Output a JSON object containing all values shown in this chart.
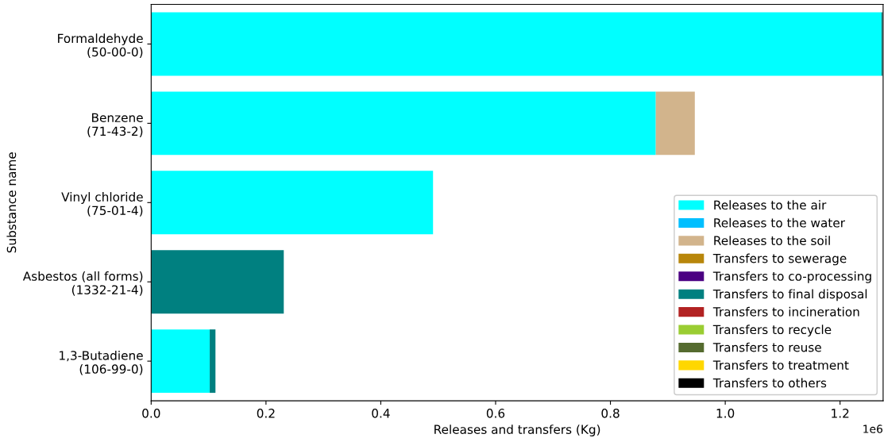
{
  "chart_data": {
    "type": "bar",
    "orientation": "horizontal",
    "stacked": true,
    "ylabel": "Substance name",
    "xlabel": "Releases and transfers (Kg)",
    "categories": [
      "Formaldehyde\n(50-00-0)",
      "Benzene\n(71-43-2)",
      "Vinyl chloride\n(75-01-4)",
      "Asbestos (all forms)\n(1332-21-4)",
      "1,3-Butadiene\n(106-99-0)"
    ],
    "series": [
      {
        "name": "Releases to the air",
        "color": "#00ffff",
        "values": [
          1.272,
          0.879,
          0.491,
          0,
          0.102
        ]
      },
      {
        "name": "Releases to the water",
        "color": "#00bfff",
        "values": [
          0,
          null,
          null,
          0,
          0
        ]
      },
      {
        "name": "Releases to the soil",
        "color": "#d2b48c",
        "values": [
          0,
          0.068,
          0,
          0,
          0
        ]
      },
      {
        "name": "Transfers to sewerage",
        "color": "#b8860b",
        "values": [
          0,
          0,
          0,
          0,
          0
        ]
      },
      {
        "name": "Transfers to co-processing",
        "color": "#4b0082",
        "values": [
          0,
          0,
          0,
          0,
          0
        ]
      },
      {
        "name": "Transfers to final disposal",
        "color": "#008080",
        "values": [
          0.002,
          null,
          0,
          0.231,
          0.01
        ]
      },
      {
        "name": "Transfers to incineration",
        "color": "#b22222",
        "values": [
          0,
          0,
          0,
          0,
          0
        ]
      },
      {
        "name": "Transfers to recycle",
        "color": "#9acd32",
        "values": [
          0,
          0,
          0,
          0,
          0
        ]
      },
      {
        "name": "Transfers to reuse",
        "color": "#556b2f",
        "values": [
          0,
          0,
          0,
          0,
          0
        ]
      },
      {
        "name": "Transfers to treatment",
        "color": "#ffd700",
        "values": [
          0,
          0,
          0,
          0,
          0
        ]
      },
      {
        "name": "Transfers to others",
        "color": "#000000",
        "values": [
          0,
          0,
          0,
          0,
          0
        ]
      }
    ],
    "xlim": [
      0,
      1.275
    ],
    "xticks": [
      {
        "value": 0,
        "label": "0.0"
      },
      0.2,
      0.4,
      0.6,
      0.8,
      {
        "value": 1,
        "label": "1.0"
      },
      1.2
    ],
    "annotations": [
      "1e6"
    ],
    "legend": "bottom right",
    "grid": false
  }
}
